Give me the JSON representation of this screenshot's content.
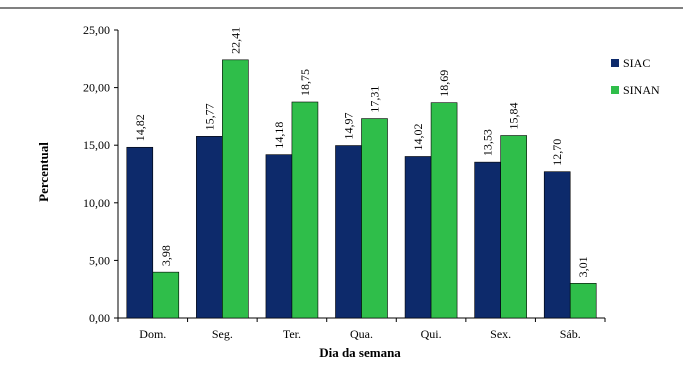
{
  "chart_data": {
    "type": "bar",
    "categories": [
      "Dom.",
      "Seg.",
      "Ter.",
      "Qua.",
      "Qui.",
      "Sex.",
      "Sáb."
    ],
    "series": [
      {
        "name": "SIAC",
        "color": "#0d2a6b",
        "values": [
          14.82,
          15.77,
          14.18,
          14.97,
          14.02,
          13.53,
          12.7
        ],
        "labels": [
          "14,82",
          "15,77",
          "14,18",
          "14,97",
          "14,02",
          "13,53",
          "12,70"
        ]
      },
      {
        "name": "SINAN",
        "color": "#2fbe4a",
        "values": [
          3.98,
          22.41,
          18.75,
          17.31,
          18.69,
          15.84,
          3.01
        ],
        "labels": [
          "3,98",
          "22,41",
          "18,75",
          "17,31",
          "18,69",
          "15,84",
          "3,01"
        ]
      }
    ],
    "xlabel": "Dia da semana",
    "ylabel": "Percentual",
    "ylim": [
      0,
      25
    ],
    "yticks": [
      0,
      5,
      10,
      15,
      20,
      25
    ],
    "ytick_labels": [
      "0,00",
      "5,00",
      "10,00",
      "15,00",
      "20,00",
      "25,00"
    ],
    "grid": false,
    "legend_position": "right"
  }
}
